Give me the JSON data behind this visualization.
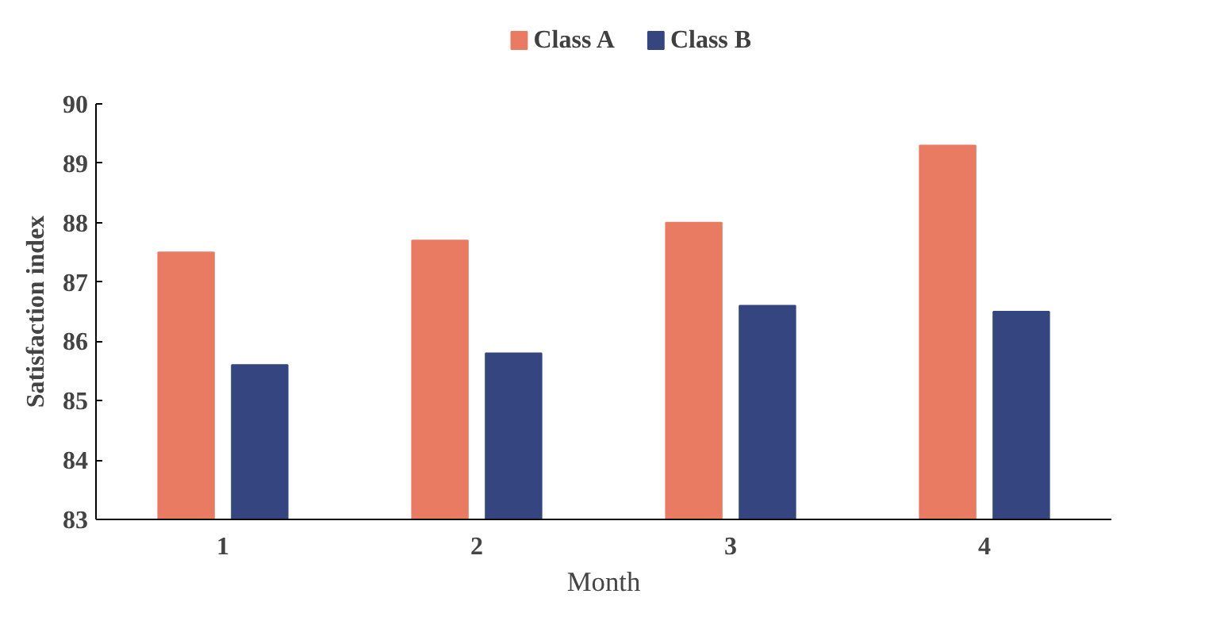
{
  "chart_data": {
    "type": "bar",
    "xlabel": "Month",
    "ylabel": "Satisfaction index",
    "categories": [
      "1",
      "2",
      "3",
      "4"
    ],
    "series": [
      {
        "name": "Class A",
        "color": "#e97b63",
        "values": [
          87.5,
          87.7,
          88.0,
          89.3
        ]
      },
      {
        "name": "Class B",
        "color": "#34457f",
        "values": [
          85.6,
          85.8,
          86.6,
          86.5
        ]
      }
    ],
    "ylim": [
      83,
      90
    ],
    "yticks": [
      83,
      84,
      85,
      86,
      87,
      88,
      89,
      90
    ],
    "grid": false,
    "legend": "top"
  }
}
